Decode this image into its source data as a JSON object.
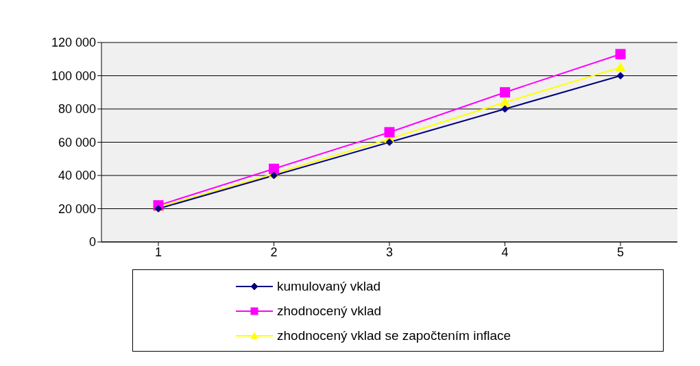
{
  "chart_data": {
    "type": "line",
    "categories": [
      "1",
      "2",
      "3",
      "4",
      "5"
    ],
    "series": [
      {
        "name": "kumulovaný vklad",
        "color": "#000080",
        "marker": "diamond",
        "values": [
          20000,
          40000,
          60000,
          80000,
          100000
        ]
      },
      {
        "name": "zhodnocený vklad",
        "color": "#ff00ff",
        "marker": "square",
        "values": [
          22000,
          44000,
          66000,
          90000,
          113000
        ]
      },
      {
        "name": "zhodnocený vklad se započtením inflace",
        "color": "#ffff00",
        "marker": "triangle",
        "values": [
          21000,
          41000,
          62000,
          84000,
          105000
        ]
      }
    ],
    "ylim": [
      0,
      120000
    ],
    "yticks": [
      {
        "value": 0,
        "label": "0"
      },
      {
        "value": 20000,
        "label": "20 000"
      },
      {
        "value": 40000,
        "label": "40 000"
      },
      {
        "value": 60000,
        "label": "60 000"
      },
      {
        "value": 80000,
        "label": "80 000"
      },
      {
        "value": 100000,
        "label": "100 000"
      },
      {
        "value": 120000,
        "label": "120 000"
      }
    ],
    "grid": "y",
    "legend": "bottom"
  }
}
